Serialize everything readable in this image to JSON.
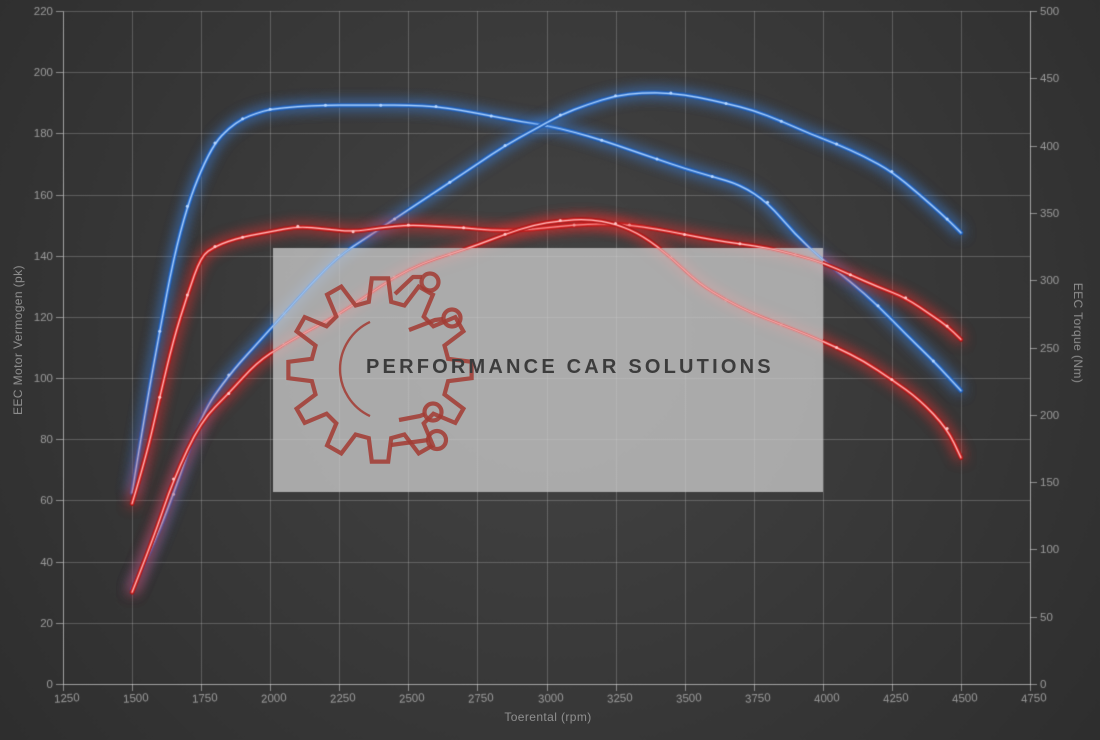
{
  "chart_data": {
    "type": "line",
    "title": "",
    "xlabel": "Toerental (rpm)",
    "ylabel_left": "EEC Motor Vermogen (pk)",
    "ylabel_right": "EEC Torque (Nm)",
    "x_range": [
      1250,
      4750
    ],
    "x_ticks": [
      1250,
      1500,
      1750,
      2000,
      2250,
      2500,
      2750,
      3000,
      3250,
      3500,
      3750,
      4000,
      4250,
      4500,
      4750
    ],
    "y_left_range": [
      0,
      220
    ],
    "y_left_ticks": [
      0,
      20,
      40,
      60,
      80,
      100,
      120,
      140,
      160,
      180,
      200,
      220
    ],
    "y_right_range": [
      0,
      500
    ],
    "y_right_ticks": [
      0,
      50,
      100,
      150,
      200,
      250,
      300,
      350,
      400,
      450,
      500
    ],
    "grid": true,
    "legend": "none",
    "series": [
      {
        "name": "blue-torque",
        "axis": "right",
        "unit": "Nm",
        "color": "blue",
        "points": [
          [
            1500,
            142
          ],
          [
            1550,
            205
          ],
          [
            1600,
            262
          ],
          [
            1650,
            316
          ],
          [
            1700,
            355
          ],
          [
            1750,
            382
          ],
          [
            1800,
            402
          ],
          [
            1850,
            413
          ],
          [
            1900,
            420
          ],
          [
            1950,
            424
          ],
          [
            2000,
            427
          ],
          [
            2100,
            429
          ],
          [
            2200,
            430
          ],
          [
            2300,
            430
          ],
          [
            2400,
            430
          ],
          [
            2500,
            430
          ],
          [
            2600,
            429
          ],
          [
            2700,
            426
          ],
          [
            2800,
            422
          ],
          [
            2900,
            418
          ],
          [
            3000,
            415
          ],
          [
            3100,
            410
          ],
          [
            3200,
            404
          ],
          [
            3300,
            397
          ],
          [
            3400,
            390
          ],
          [
            3500,
            383
          ],
          [
            3600,
            377
          ],
          [
            3700,
            371
          ],
          [
            3800,
            358
          ],
          [
            3900,
            334
          ],
          [
            4000,
            315
          ],
          [
            4100,
            299
          ],
          [
            4200,
            281
          ],
          [
            4300,
            260
          ],
          [
            4400,
            240
          ],
          [
            4450,
            229
          ],
          [
            4500,
            218
          ]
        ]
      },
      {
        "name": "blue-power",
        "axis": "left",
        "unit": "pk",
        "color": "blue",
        "points": [
          [
            1500,
            31
          ],
          [
            1575,
            45
          ],
          [
            1650,
            62
          ],
          [
            1750,
            88
          ],
          [
            1850,
            101
          ],
          [
            1950,
            111
          ],
          [
            2050,
            121
          ],
          [
            2150,
            131
          ],
          [
            2250,
            140
          ],
          [
            2350,
            146
          ],
          [
            2450,
            152
          ],
          [
            2550,
            158
          ],
          [
            2650,
            164
          ],
          [
            2750,
            170
          ],
          [
            2850,
            176
          ],
          [
            2950,
            181
          ],
          [
            3050,
            186
          ],
          [
            3150,
            189.5
          ],
          [
            3250,
            192.3
          ],
          [
            3350,
            193.3
          ],
          [
            3450,
            193.2
          ],
          [
            3550,
            191.8
          ],
          [
            3650,
            189.8
          ],
          [
            3750,
            187.5
          ],
          [
            3850,
            184
          ],
          [
            3950,
            180
          ],
          [
            4050,
            176.5
          ],
          [
            4150,
            172.5
          ],
          [
            4250,
            167.5
          ],
          [
            4350,
            160
          ],
          [
            4450,
            152
          ],
          [
            4500,
            147.5
          ]
        ]
      },
      {
        "name": "red-torque",
        "axis": "right",
        "unit": "Nm",
        "color": "red",
        "points": [
          [
            1500,
            134
          ],
          [
            1550,
            168
          ],
          [
            1600,
            213
          ],
          [
            1650,
            256
          ],
          [
            1700,
            289
          ],
          [
            1750,
            318
          ],
          [
            1800,
            325
          ],
          [
            1850,
            329
          ],
          [
            1900,
            332
          ],
          [
            2000,
            336
          ],
          [
            2100,
            340
          ],
          [
            2200,
            338
          ],
          [
            2300,
            336
          ],
          [
            2400,
            339
          ],
          [
            2500,
            341
          ],
          [
            2600,
            340
          ],
          [
            2700,
            339
          ],
          [
            2800,
            337
          ],
          [
            2900,
            337
          ],
          [
            3000,
            339
          ],
          [
            3100,
            341
          ],
          [
            3200,
            342
          ],
          [
            3300,
            341
          ],
          [
            3400,
            338
          ],
          [
            3500,
            334
          ],
          [
            3600,
            330
          ],
          [
            3700,
            327
          ],
          [
            3800,
            324
          ],
          [
            3900,
            319
          ],
          [
            4000,
            313
          ],
          [
            4100,
            304
          ],
          [
            4200,
            295
          ],
          [
            4300,
            287
          ],
          [
            4400,
            273
          ],
          [
            4450,
            266
          ],
          [
            4500,
            256
          ]
        ]
      },
      {
        "name": "red-power",
        "axis": "left",
        "unit": "pk",
        "color": "red",
        "points": [
          [
            1500,
            30
          ],
          [
            1575,
            47
          ],
          [
            1650,
            67
          ],
          [
            1750,
            86
          ],
          [
            1850,
            95
          ],
          [
            1950,
            105
          ],
          [
            2050,
            111
          ],
          [
            2150,
            116
          ],
          [
            2250,
            121
          ],
          [
            2350,
            127
          ],
          [
            2450,
            133
          ],
          [
            2550,
            137.5
          ],
          [
            2650,
            140.5
          ],
          [
            2750,
            143.5
          ],
          [
            2850,
            147
          ],
          [
            2950,
            150
          ],
          [
            3050,
            151.5
          ],
          [
            3150,
            152
          ],
          [
            3250,
            150.5
          ],
          [
            3350,
            146.5
          ],
          [
            3450,
            139.5
          ],
          [
            3550,
            131
          ],
          [
            3650,
            125.5
          ],
          [
            3750,
            121
          ],
          [
            3850,
            117.5
          ],
          [
            3950,
            114
          ],
          [
            4050,
            110
          ],
          [
            4150,
            105.5
          ],
          [
            4250,
            99.5
          ],
          [
            4350,
            93
          ],
          [
            4450,
            83.5
          ],
          [
            4500,
            74
          ]
        ]
      }
    ]
  },
  "watermark": {
    "text": "PERFORMANCE CAR SOLUTIONS",
    "logo": "gear-circuit-icon"
  },
  "colors": {
    "background_center": "#424242",
    "background_edge": "#2d2d2d",
    "grid": "rgba(190,190,190,0.30)",
    "spine": "rgba(215,215,215,0.55)",
    "tick_label": "#9a9a9a",
    "axis_title": "#909090",
    "blue_mid": "#3c7fd8",
    "blue_glow": "#1d55a8",
    "blue_core": "#b8d8ff",
    "red_mid": "#e23030",
    "red_glow": "#a31515",
    "red_core": "#ffc9c9",
    "watermark_box": "rgba(207,207,207,0.75)",
    "watermark_logo": "#a33d36",
    "watermark_text": "#3c3c3c"
  }
}
